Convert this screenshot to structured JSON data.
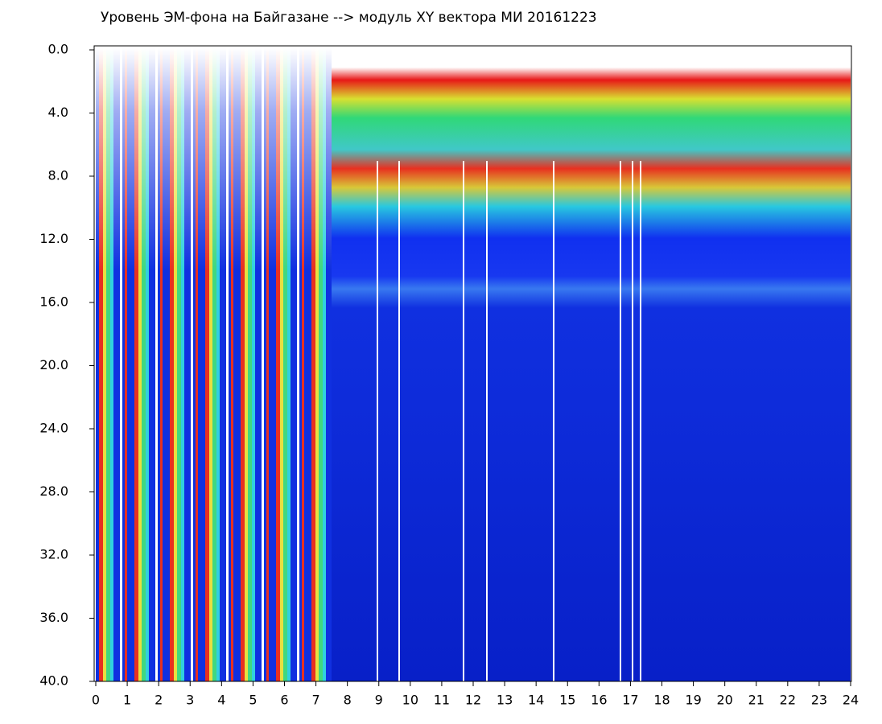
{
  "chart_data": {
    "type": "heatmap",
    "title": "Уровень ЭМ-фона на Байгазане  -->  модуль XY вектора МИ  20161223",
    "xlim": [
      0,
      24
    ],
    "xticks": [
      0,
      1,
      2,
      3,
      4,
      5,
      6,
      7,
      8,
      9,
      10,
      11,
      12,
      13,
      14,
      15,
      16,
      17,
      18,
      19,
      20,
      21,
      22,
      23,
      24
    ],
    "ylim": [
      0,
      40
    ],
    "y_reversed": true,
    "yticks": [
      {
        "value": 0,
        "label": "0.0"
      },
      {
        "value": 4,
        "label": "4.0"
      },
      {
        "value": 8,
        "label": "8.0"
      },
      {
        "value": 12,
        "label": "12.0"
      },
      {
        "value": 16,
        "label": "16.0"
      },
      {
        "value": 20,
        "label": "20.0"
      },
      {
        "value": 24,
        "label": "24.0"
      },
      {
        "value": 28,
        "label": "28.0"
      },
      {
        "value": 32,
        "label": "32.0"
      },
      {
        "value": 36,
        "label": "36.0"
      },
      {
        "value": 40,
        "label": "40.0"
      }
    ]
  }
}
